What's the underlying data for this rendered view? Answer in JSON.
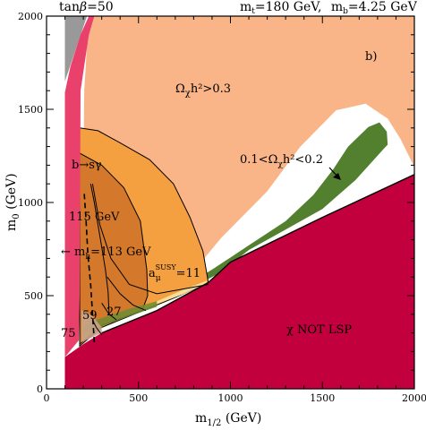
{
  "chart_data": {
    "type": "area",
    "header_left": {
      "base": "tan",
      "greek": "β",
      "value": "=50"
    },
    "header_right": {
      "mt": "m",
      "mt_sub": "t",
      "mt_val": "=180 GeV,",
      "mb": "m",
      "mb_sub": "b",
      "mb_val": "=4.25 GeV"
    },
    "panel_label": "b)",
    "xlabel": {
      "base": "m",
      "sub": "1/2",
      "unit": " (GeV)"
    },
    "ylabel": {
      "base": "m",
      "sub": "0",
      "unit": " (GeV)"
    },
    "xlim": [
      100,
      2000
    ],
    "ylim": [
      0,
      2000
    ],
    "xticks": [
      0,
      500,
      1000,
      1500,
      2000
    ],
    "yticks": [
      0,
      500,
      1000,
      1500,
      2000
    ],
    "grid": false,
    "colors": {
      "omega_high": "#f9b587",
      "omega_band": "#53802e",
      "not_lsp": "#c3003e",
      "bsgamma": "#f4a041",
      "higgs115": "#d4792c",
      "gray": "#999999",
      "pink": "#e9416b",
      "gminus2_band": "#6b8d33",
      "light_yellow": "#f7e6a1",
      "tan_low": "#c8a48a",
      "white": "#ffffff"
    },
    "regions": [
      {
        "name": "omega-high",
        "label": {
          "base": "Ω",
          "sub": "χ",
          "tail": "h²>0.3"
        },
        "boundary": [
          [
            230,
            2000
          ],
          [
            2000,
            2000
          ],
          [
            2000,
            1190
          ],
          [
            1925,
            1340
          ],
          [
            1855,
            1450
          ],
          [
            1735,
            1530
          ],
          [
            1575,
            1495
          ],
          [
            1380,
            1300
          ],
          [
            1200,
            1060
          ],
          [
            950,
            810
          ],
          [
            740,
            560
          ],
          [
            600,
            470
          ],
          [
            300,
            340
          ],
          [
            220,
            360
          ],
          [
            200,
            1000
          ],
          [
            205,
            1600
          ]
        ]
      },
      {
        "name": "omega-band",
        "label": {
          "pre": "0.1<",
          "base": "Ω",
          "sub": "χ",
          "tail": "h²<0.2"
        },
        "boundary": [
          [
            1850,
            1380
          ],
          [
            1855,
            1310
          ],
          [
            1835,
            1290
          ],
          [
            1680,
            1120
          ],
          [
            1500,
            965
          ],
          [
            1300,
            855
          ],
          [
            1100,
            745
          ],
          [
            940,
            620
          ],
          [
            820,
            560
          ],
          [
            600,
            450
          ],
          [
            450,
            410
          ],
          [
            300,
            345
          ],
          [
            300,
            370
          ],
          [
            500,
            440
          ],
          [
            700,
            520
          ],
          [
            900,
            640
          ],
          [
            1100,
            770
          ],
          [
            1300,
            900
          ],
          [
            1450,
            1040
          ],
          [
            1560,
            1180
          ],
          [
            1640,
            1300
          ],
          [
            1750,
            1405
          ],
          [
            1810,
            1430
          ]
        ]
      },
      {
        "name": "not-lsp",
        "label": "χ NOT LSP",
        "boundary": [
          [
            100,
            0
          ],
          [
            2000,
            0
          ],
          [
            2000,
            1150
          ],
          [
            1500,
            920
          ],
          [
            1000,
            680
          ],
          [
            880,
            570
          ],
          [
            600,
            420
          ],
          [
            300,
            300
          ],
          [
            200,
            240
          ],
          [
            100,
            170
          ]
        ]
      },
      {
        "name": "b-to-s-gamma",
        "label": {
          "pre": "b",
          "arrow": "→",
          "post": "sγ"
        },
        "boundary": [
          [
            180,
            1400
          ],
          [
            280,
            1385
          ],
          [
            400,
            1320
          ],
          [
            560,
            1230
          ],
          [
            690,
            1100
          ],
          [
            780,
            920
          ],
          [
            850,
            740
          ],
          [
            880,
            570
          ],
          [
            700,
            490
          ],
          [
            300,
            330
          ],
          [
            180,
            230
          ]
        ]
      },
      {
        "name": "higgs-115",
        "label": "115 GeV",
        "boundary": [
          [
            180,
            1265
          ],
          [
            300,
            1200
          ],
          [
            420,
            1080
          ],
          [
            510,
            900
          ],
          [
            545,
            640
          ],
          [
            550,
            500
          ],
          [
            520,
            420
          ],
          [
            300,
            340
          ],
          [
            180,
            240
          ]
        ]
      },
      {
        "name": "gray-tachyonic",
        "boundary": [
          [
            100,
            1650
          ],
          [
            145,
            1780
          ],
          [
            220,
            2000
          ],
          [
            100,
            2000
          ]
        ]
      },
      {
        "name": "pink-strip",
        "boundary": [
          [
            100,
            1590
          ],
          [
            130,
            1730
          ],
          [
            185,
            1900
          ],
          [
            230,
            2000
          ],
          [
            260,
            2000
          ],
          [
            230,
            1900
          ],
          [
            185,
            1600
          ],
          [
            180,
            500
          ],
          [
            175,
            260
          ],
          [
            100,
            170
          ]
        ]
      }
    ],
    "curves": [
      {
        "name": "m-h-113",
        "label": {
          "pre": "← m",
          "sub": "h",
          "post": "=113 GeV"
        },
        "points": [
          [
            340,
            400
          ],
          [
            335,
            520
          ],
          [
            320,
            640
          ],
          [
            300,
            760
          ],
          [
            280,
            880
          ],
          [
            260,
            1000
          ],
          [
            240,
            1100
          ]
        ]
      },
      {
        "name": "m-h-113-dashed",
        "dashed": true,
        "points": [
          [
            260,
            250
          ],
          [
            250,
            400
          ],
          [
            240,
            560
          ],
          [
            225,
            720
          ],
          [
            215,
            900
          ],
          [
            205,
            1050
          ]
        ]
      },
      {
        "name": "a-mu-11",
        "label": {
          "pre": "a",
          "sub": "μ",
          "sup": "SUSY",
          "post": "=11"
        },
        "points": [
          [
            880,
            560
          ],
          [
            600,
            510
          ],
          [
            450,
            560
          ],
          [
            350,
            700
          ],
          [
            290,
            880
          ],
          [
            250,
            1100
          ]
        ]
      },
      {
        "name": "a-mu-27",
        "label": "27",
        "points": [
          [
            540,
            420
          ],
          [
            470,
            450
          ],
          [
            400,
            510
          ],
          [
            330,
            600
          ]
        ]
      },
      {
        "name": "a-mu-59",
        "label": "59",
        "points": [
          [
            380,
            370
          ],
          [
            340,
            400
          ],
          [
            300,
            460
          ]
        ]
      },
      {
        "name": "a-mu-75",
        "label": "75",
        "points": [
          [
            300,
            290
          ],
          [
            270,
            330
          ],
          [
            250,
            370
          ]
        ]
      }
    ]
  }
}
